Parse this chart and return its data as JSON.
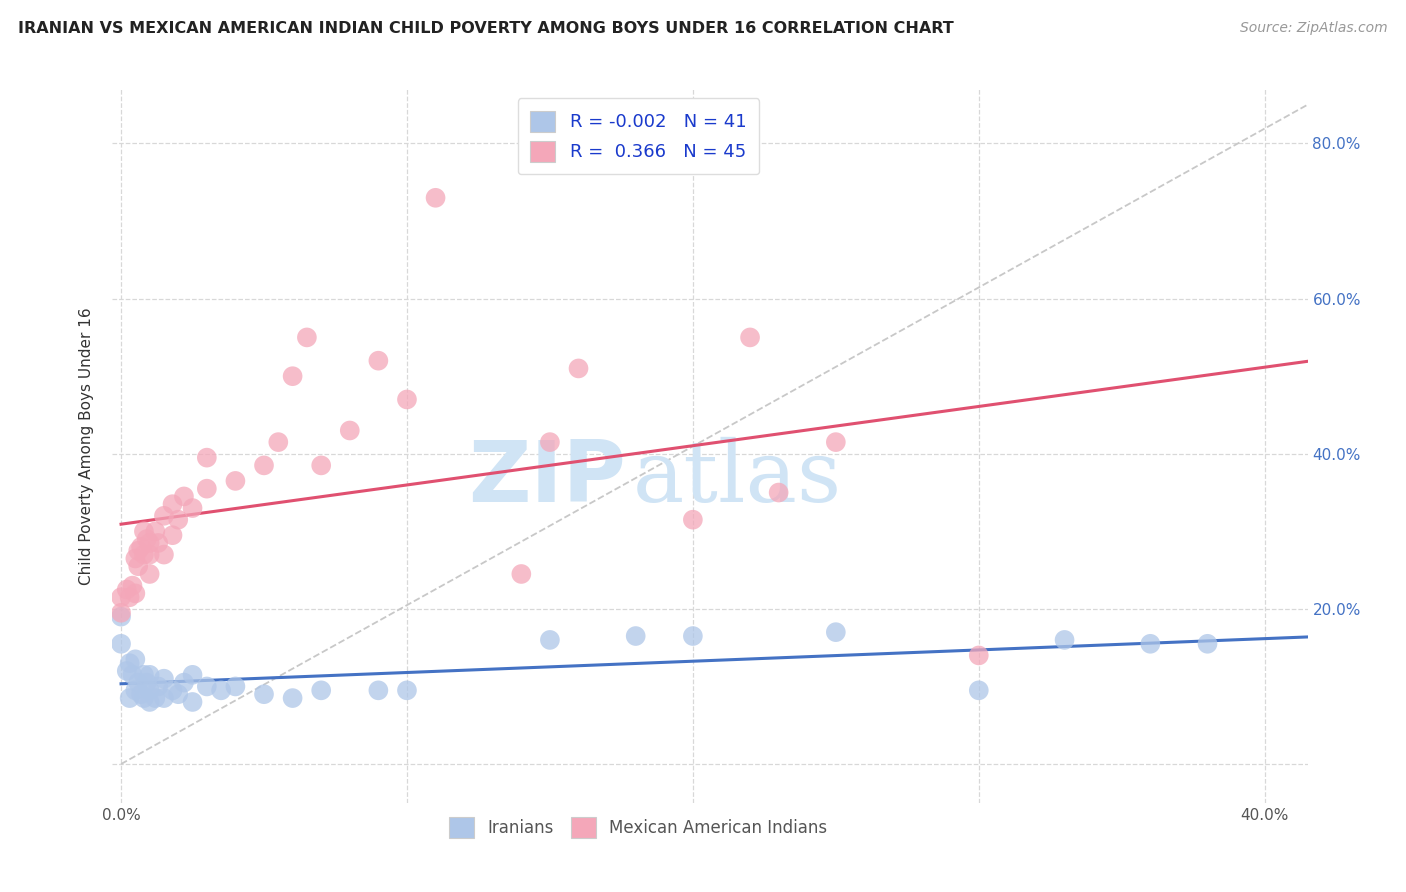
{
  "title": "IRANIAN VS MEXICAN AMERICAN INDIAN CHILD POVERTY AMONG BOYS UNDER 16 CORRELATION CHART",
  "source": "Source: ZipAtlas.com",
  "ylabel": "Child Poverty Among Boys Under 16",
  "xlim": [
    -0.003,
    0.415
  ],
  "ylim": [
    -0.05,
    0.87
  ],
  "xticks": [
    0.0,
    0.1,
    0.2,
    0.3,
    0.4
  ],
  "xtick_labels": [
    "0.0%",
    "",
    "",
    "",
    "40.0%"
  ],
  "yticks": [
    0.0,
    0.2,
    0.4,
    0.6,
    0.8
  ],
  "ytick_right_labels": [
    "",
    "20.0%",
    "40.0%",
    "60.0%",
    "80.0%"
  ],
  "R_iranian": -0.002,
  "N_iranian": 41,
  "R_mexican": 0.366,
  "N_mexican": 45,
  "background_color": "#ffffff",
  "grid_color": "#d8d8d8",
  "watermark_zip": "ZIP",
  "watermark_atlas": "atlas",
  "iranian_color": "#aec6e8",
  "mexican_color": "#f4a7b9",
  "iranian_line_color": "#4472c4",
  "mexican_line_color": "#e05070",
  "diagonal_color": "#c8c8c8",
  "iran_x": [
    0.0,
    0.0,
    0.002,
    0.003,
    0.003,
    0.004,
    0.005,
    0.005,
    0.006,
    0.007,
    0.008,
    0.008,
    0.009,
    0.01,
    0.01,
    0.01,
    0.012,
    0.013,
    0.015,
    0.015,
    0.018,
    0.02,
    0.022,
    0.025,
    0.025,
    0.03,
    0.035,
    0.04,
    0.05,
    0.06,
    0.07,
    0.09,
    0.1,
    0.15,
    0.18,
    0.2,
    0.25,
    0.3,
    0.33,
    0.36,
    0.38
  ],
  "iran_y": [
    0.155,
    0.19,
    0.12,
    0.085,
    0.13,
    0.115,
    0.095,
    0.135,
    0.105,
    0.09,
    0.085,
    0.115,
    0.105,
    0.08,
    0.095,
    0.115,
    0.085,
    0.1,
    0.085,
    0.11,
    0.095,
    0.09,
    0.105,
    0.08,
    0.115,
    0.1,
    0.095,
    0.1,
    0.09,
    0.085,
    0.095,
    0.095,
    0.095,
    0.16,
    0.165,
    0.165,
    0.17,
    0.095,
    0.16,
    0.155,
    0.155
  ],
  "mex_x": [
    0.0,
    0.0,
    0.002,
    0.003,
    0.004,
    0.005,
    0.005,
    0.006,
    0.006,
    0.007,
    0.008,
    0.008,
    0.009,
    0.01,
    0.01,
    0.01,
    0.012,
    0.013,
    0.015,
    0.015,
    0.018,
    0.018,
    0.02,
    0.022,
    0.025,
    0.03,
    0.03,
    0.04,
    0.05,
    0.055,
    0.06,
    0.065,
    0.07,
    0.08,
    0.09,
    0.1,
    0.11,
    0.14,
    0.15,
    0.16,
    0.2,
    0.22,
    0.23,
    0.25,
    0.3
  ],
  "mex_y": [
    0.195,
    0.215,
    0.225,
    0.215,
    0.23,
    0.22,
    0.265,
    0.255,
    0.275,
    0.28,
    0.27,
    0.3,
    0.29,
    0.245,
    0.27,
    0.285,
    0.3,
    0.285,
    0.27,
    0.32,
    0.295,
    0.335,
    0.315,
    0.345,
    0.33,
    0.355,
    0.395,
    0.365,
    0.385,
    0.415,
    0.5,
    0.55,
    0.385,
    0.43,
    0.52,
    0.47,
    0.73,
    0.245,
    0.415,
    0.51,
    0.315,
    0.55,
    0.35,
    0.415,
    0.14
  ]
}
